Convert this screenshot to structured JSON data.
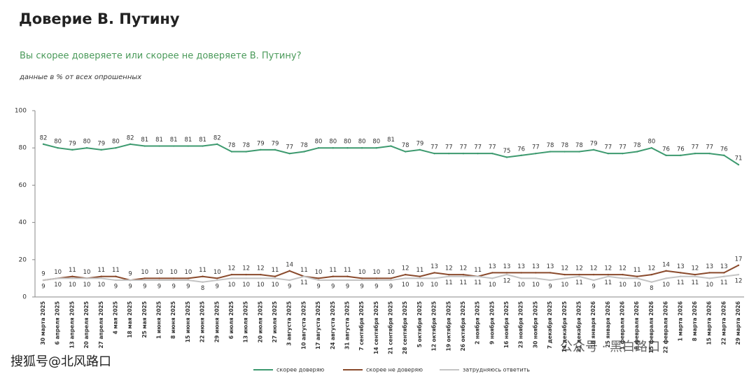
{
  "chart_data": {
    "type": "line",
    "title": "Доверие В. Путину",
    "subtitle": "Вы скорее доверяете или скорее не доверяете В. Путину?",
    "note": "данные в % от всех опрошенных",
    "categories": [
      "30 марта 2025",
      "6 апреля 2025",
      "13 апреля 2025",
      "20 апреля 2025",
      "27 апреля 2025",
      "4 мая 2025",
      "18 мая 2025",
      "25 мая 2025",
      "1 июня 2025",
      "8 июня 2025",
      "15 июня 2025",
      "22 июня 2025",
      "29 июня 2025",
      "6 июля 2025",
      "13 июля 2025",
      "20 июля 2025",
      "27 июля 2025",
      "3 августа 2025",
      "10 августа 2025",
      "17 августа 2025",
      "24 августа 2025",
      "31 августа 2025",
      "7 сентября 2025",
      "14 сентября 2025",
      "21 сентября 2025",
      "28 сентября 2025",
      "5 октября 2025",
      "12 октября 2025",
      "19 октября 2025",
      "26 октября 2025",
      "2 ноября 2025",
      "9 ноября 2025",
      "16 ноября 2025",
      "23 ноября 2025",
      "30 ноября 2025",
      "7 декабря 2025",
      "14 декабря 2025",
      "21 декабря 2025",
      "18 января 2026",
      "25 января 2026",
      "1 февраля 2026",
      "8 февраля 2026",
      "15 февраля 2026",
      "22 февраля 2026",
      "1 марта 2026",
      "8 марта 2026",
      "15 марта 2026",
      "22 марта 2026",
      "29 марта 2026"
    ],
    "series": [
      {
        "name": "скорее доверяю",
        "color": "#3d9a6f",
        "values": [
          82,
          80,
          79,
          80,
          79,
          80,
          82,
          81,
          81,
          81,
          81,
          81,
          82,
          78,
          78,
          79,
          79,
          77,
          78,
          80,
          80,
          80,
          80,
          80,
          81,
          78,
          79,
          77,
          77,
          77,
          77,
          77,
          75,
          76,
          77,
          78,
          78,
          78,
          79,
          77,
          77,
          78,
          80,
          76,
          76,
          77,
          77,
          76,
          71
        ]
      },
      {
        "name": "скорее не доверяю",
        "color": "#8a4a2c",
        "values": [
          9,
          10,
          11,
          10,
          11,
          11,
          9,
          10,
          10,
          10,
          10,
          11,
          10,
          12,
          12,
          12,
          11,
          14,
          11,
          10,
          11,
          11,
          10,
          10,
          10,
          12,
          11,
          13,
          12,
          12,
          11,
          13,
          13,
          13,
          13,
          13,
          12,
          12,
          12,
          12,
          12,
          11,
          12,
          14,
          13,
          12,
          13,
          13,
          17
        ]
      },
      {
        "name": "затрудняюсь ответить",
        "color": "#c4c4c4",
        "values": [
          9,
          10,
          10,
          10,
          10,
          9,
          9,
          9,
          9,
          9,
          9,
          8,
          9,
          10,
          10,
          10,
          10,
          9,
          11,
          9,
          9,
          9,
          9,
          9,
          9,
          10,
          10,
          10,
          11,
          11,
          11,
          10,
          12,
          10,
          10,
          9,
          10,
          11,
          9,
          11,
          10,
          10,
          8,
          10,
          11,
          11,
          10,
          11,
          12
        ]
      }
    ],
    "ylim": [
      0,
      100
    ],
    "yticks": [
      0,
      20,
      40,
      60,
      80,
      100
    ],
    "grid": false
  },
  "watermarks": [
    "搜狐号@北风路口",
    "公众号 · 黑白路口"
  ]
}
